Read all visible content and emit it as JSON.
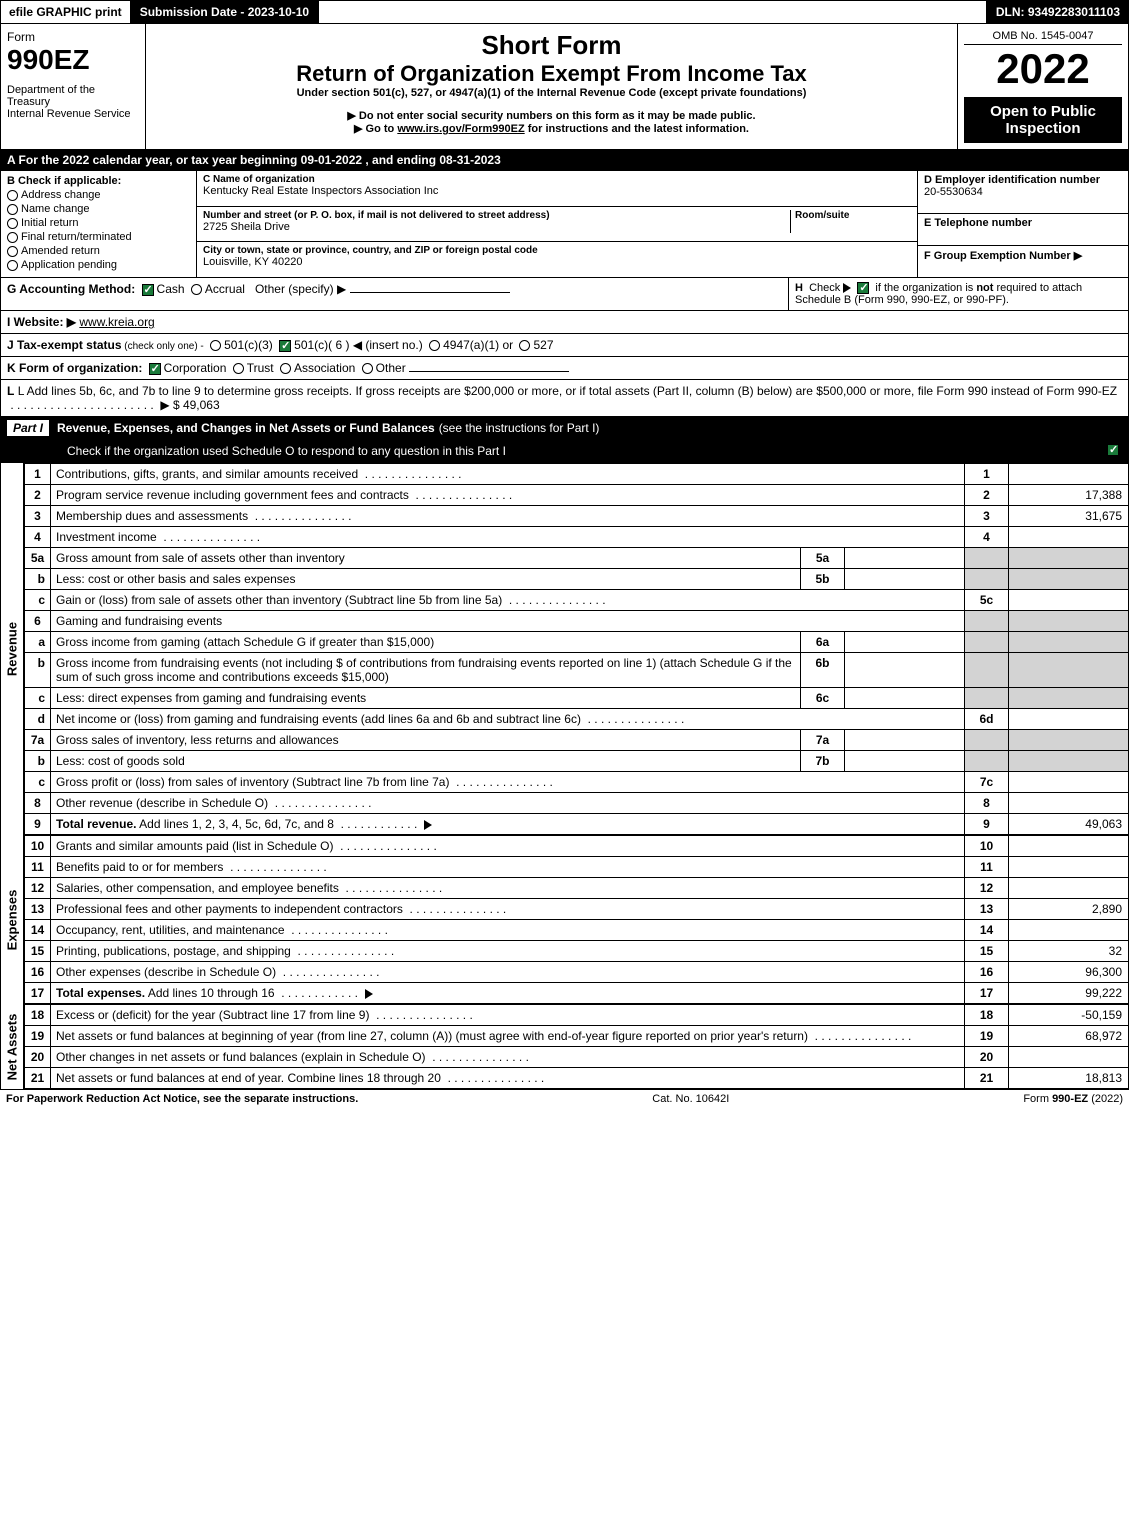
{
  "topbar": {
    "efile": "efile GRAPHIC print",
    "submission_label": "Submission Date - 2023-10-10",
    "dln_label": "DLN: 93492283011103"
  },
  "header": {
    "form_word": "Form",
    "form_number": "990EZ",
    "dept1": "Department of the Treasury",
    "dept2": "Internal Revenue Service",
    "title1": "Short Form",
    "title2": "Return of Organization Exempt From Income Tax",
    "sub1": "Under section 501(c), 527, or 4947(a)(1) of the Internal Revenue Code (except private foundations)",
    "sub2": "▶ Do not enter social security numbers on this form as it may be made public.",
    "sub3_pre": "▶ Go to ",
    "sub3_link": "www.irs.gov/Form990EZ",
    "sub3_post": " for instructions and the latest information.",
    "omb": "OMB No. 1545-0047",
    "year": "2022",
    "open_public": "Open to Public Inspection"
  },
  "line_A": "A  For the 2022 calendar year, or tax year beginning 09-01-2022 , and ending 08-31-2023",
  "col_B": {
    "head": "B  Check if applicable:",
    "items": [
      "Address change",
      "Name change",
      "Initial return",
      "Final return/terminated",
      "Amended return",
      "Application pending"
    ]
  },
  "col_C": {
    "name_lbl": "C Name of organization",
    "name_val": "Kentucky Real Estate Inspectors Association Inc",
    "addr_lbl": "Number and street (or P. O. box, if mail is not delivered to street address)",
    "room_lbl": "Room/suite",
    "addr_val": "2725 Sheila Drive",
    "city_lbl": "City or town, state or province, country, and ZIP or foreign postal code",
    "city_val": "Louisville, KY  40220"
  },
  "col_DEF": {
    "D_lbl": "D Employer identification number",
    "D_val": "20-5530634",
    "E_lbl": "E Telephone number",
    "E_val": "",
    "F_lbl": "F Group Exemption Number   ▶",
    "F_val": ""
  },
  "row_G": {
    "lead": "G Accounting Method:",
    "opt_cash": "Cash",
    "opt_accrual": "Accrual",
    "opt_other": "Other (specify) ▶"
  },
  "row_H": "H  Check ▶        if the organization is not required to attach Schedule B (Form 990, 990-EZ, or 990-PF).",
  "row_I": {
    "lead": "I Website: ▶",
    "val": "www.kreia.org"
  },
  "row_J": {
    "lead": "J Tax-exempt status",
    "sub": " (check only one) -",
    "opt1": "501(c)(3)",
    "opt2": "501(c)( 6 ) ◀ (insert no.)",
    "opt3": "4947(a)(1) or",
    "opt4": "527"
  },
  "row_K": {
    "lead": "K Form of organization:",
    "opt_corp": "Corporation",
    "opt_trust": "Trust",
    "opt_assoc": "Association",
    "opt_other": "Other"
  },
  "row_L": {
    "text": "L Add lines 5b, 6c, and 7b to line 9 to determine gross receipts. If gross receipts are $200,000 or more, or if total assets (Part II, column (B) below) are $500,000 or more, file Form 990 instead of Form 990-EZ",
    "amount": "▶ $ 49,063"
  },
  "part1": {
    "num": "Part I",
    "title": "Revenue, Expenses, and Changes in Net Assets or Fund Balances",
    "sub": " (see the instructions for Part I)",
    "check_line": "Check if the organization used Schedule O to respond to any question in this Part I"
  },
  "side_labels": {
    "revenue": "Revenue",
    "expenses": "Expenses",
    "netassets": "Net Assets"
  },
  "revenue_lines": [
    {
      "n": "1",
      "desc": "Contributions, gifts, grants, and similar amounts received",
      "box": "1",
      "amt": ""
    },
    {
      "n": "2",
      "desc": "Program service revenue including government fees and contracts",
      "box": "2",
      "amt": "17,388"
    },
    {
      "n": "3",
      "desc": "Membership dues and assessments",
      "box": "3",
      "amt": "31,675"
    },
    {
      "n": "4",
      "desc": "Investment income",
      "box": "4",
      "amt": ""
    },
    {
      "n": "5a",
      "desc": "Gross amount from sale of assets other than inventory",
      "ibox": "5a",
      "ival": ""
    },
    {
      "n": "b",
      "desc": "Less: cost or other basis and sales expenses",
      "ibox": "5b",
      "ival": ""
    },
    {
      "n": "c",
      "desc": "Gain or (loss) from sale of assets other than inventory (Subtract line 5b from line 5a)",
      "box": "5c",
      "amt": ""
    },
    {
      "n": "6",
      "desc": "Gaming and fundraising events"
    },
    {
      "n": "a",
      "desc": "Gross income from gaming (attach Schedule G if greater than $15,000)",
      "ibox": "6a",
      "ival": ""
    },
    {
      "n": "b",
      "desc": "Gross income from fundraising events (not including $                     of contributions from fundraising events reported on line 1) (attach Schedule G if the sum of such gross income and contributions exceeds $15,000)",
      "ibox": "6b",
      "ival": ""
    },
    {
      "n": "c",
      "desc": "Less: direct expenses from gaming and fundraising events",
      "ibox": "6c",
      "ival": ""
    },
    {
      "n": "d",
      "desc": "Net income or (loss) from gaming and fundraising events (add lines 6a and 6b and subtract line 6c)",
      "box": "6d",
      "amt": ""
    },
    {
      "n": "7a",
      "desc": "Gross sales of inventory, less returns and allowances",
      "ibox": "7a",
      "ival": ""
    },
    {
      "n": "b",
      "desc": "Less: cost of goods sold",
      "ibox": "7b",
      "ival": ""
    },
    {
      "n": "c",
      "desc": "Gross profit or (loss) from sales of inventory (Subtract line 7b from line 7a)",
      "box": "7c",
      "amt": ""
    },
    {
      "n": "8",
      "desc": "Other revenue (describe in Schedule O)",
      "box": "8",
      "amt": ""
    },
    {
      "n": "9",
      "desc": "Total revenue. Add lines 1, 2, 3, 4, 5c, 6d, 7c, and 8",
      "box": "9",
      "amt": "49,063",
      "bold": true,
      "arrow": true
    }
  ],
  "expense_lines": [
    {
      "n": "10",
      "desc": "Grants and similar amounts paid (list in Schedule O)",
      "box": "10",
      "amt": ""
    },
    {
      "n": "11",
      "desc": "Benefits paid to or for members",
      "box": "11",
      "amt": ""
    },
    {
      "n": "12",
      "desc": "Salaries, other compensation, and employee benefits",
      "box": "12",
      "amt": ""
    },
    {
      "n": "13",
      "desc": "Professional fees and other payments to independent contractors",
      "box": "13",
      "amt": "2,890"
    },
    {
      "n": "14",
      "desc": "Occupancy, rent, utilities, and maintenance",
      "box": "14",
      "amt": ""
    },
    {
      "n": "15",
      "desc": "Printing, publications, postage, and shipping",
      "box": "15",
      "amt": "32"
    },
    {
      "n": "16",
      "desc": "Other expenses (describe in Schedule O)",
      "box": "16",
      "amt": "96,300"
    },
    {
      "n": "17",
      "desc": "Total expenses. Add lines 10 through 16",
      "box": "17",
      "amt": "99,222",
      "bold": true,
      "arrow": true
    }
  ],
  "netasset_lines": [
    {
      "n": "18",
      "desc": "Excess or (deficit) for the year (Subtract line 17 from line 9)",
      "box": "18",
      "amt": "-50,159"
    },
    {
      "n": "19",
      "desc": "Net assets or fund balances at beginning of year (from line 27, column (A)) (must agree with end-of-year figure reported on prior year's return)",
      "box": "19",
      "amt": "68,972"
    },
    {
      "n": "20",
      "desc": "Other changes in net assets or fund balances (explain in Schedule O)",
      "box": "20",
      "amt": ""
    },
    {
      "n": "21",
      "desc": "Net assets or fund balances at end of year. Combine lines 18 through 20",
      "box": "21",
      "amt": "18,813"
    }
  ],
  "footer": {
    "left": "For Paperwork Reduction Act Notice, see the separate instructions.",
    "mid": "Cat. No. 10642I",
    "right_pre": "Form ",
    "right_form": "990-EZ",
    "right_post": " (2022)"
  },
  "colors": {
    "black": "#000000",
    "white": "#ffffff",
    "gray_fill": "#d3d3d3",
    "check_green": "#1a7a3a"
  }
}
